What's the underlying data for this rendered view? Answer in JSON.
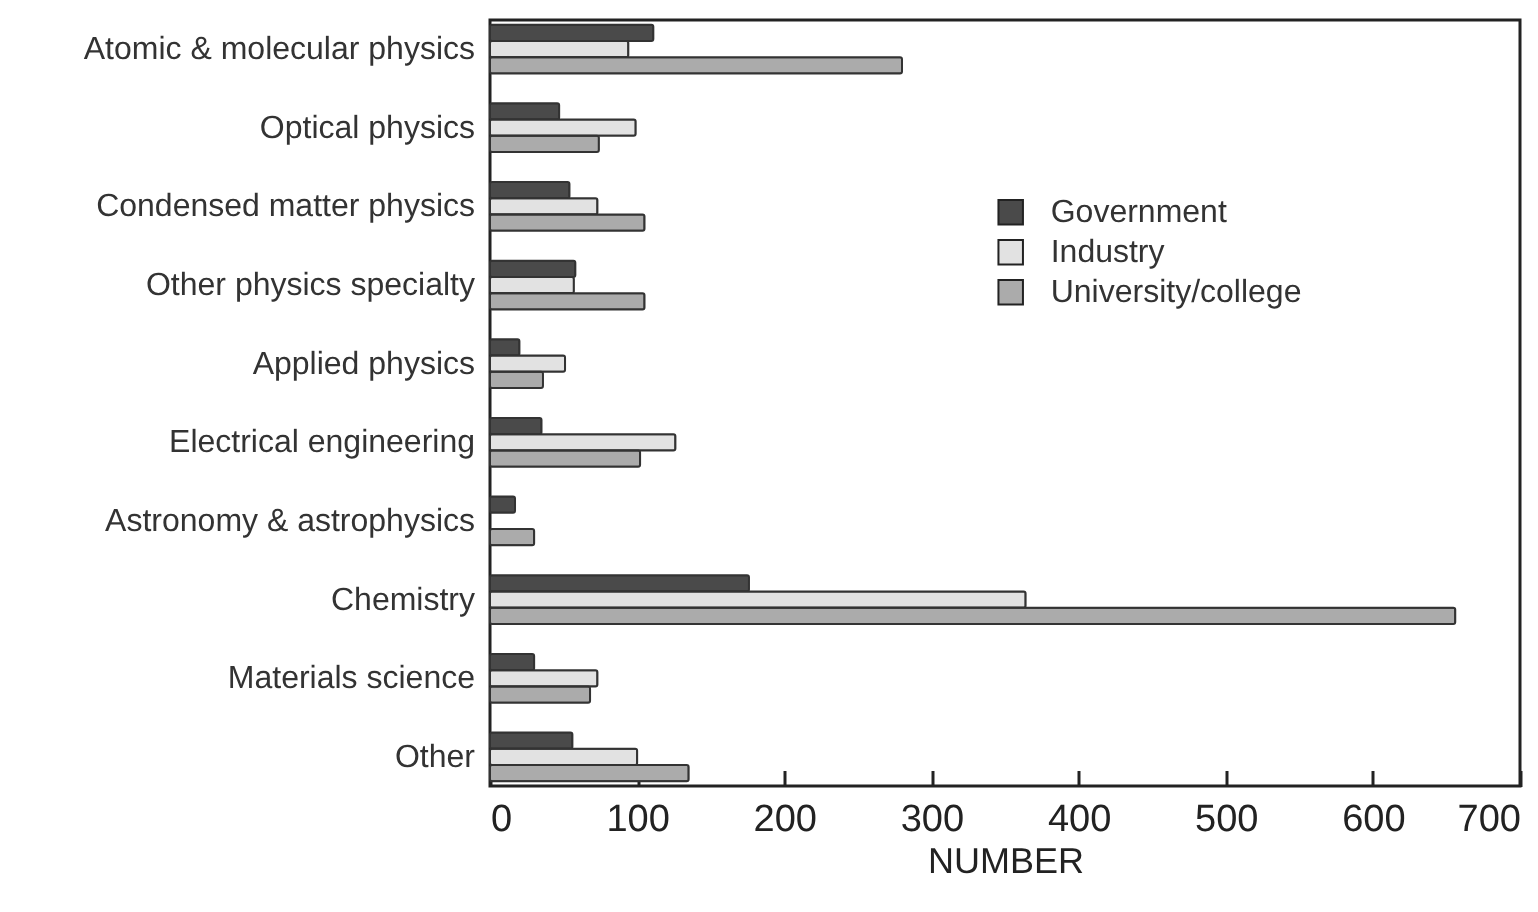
{
  "chart_data": {
    "type": "bar",
    "orientation": "horizontal",
    "xlabel": "NUMBER",
    "categories": [
      "Atomic & molecular physics",
      "Optical physics",
      "Condensed matter physics",
      "Other physics specialty",
      "Applied physics",
      "Electrical engineering",
      "Astronomy & astrophysics",
      "Chemistry",
      "Materials science",
      "Other"
    ],
    "series": [
      {
        "name": "Government",
        "color": "#4a4a4a",
        "values": [
          111,
          47,
          54,
          58,
          20,
          35,
          17,
          176,
          30,
          56
        ]
      },
      {
        "name": "Industry",
        "color": "#e2e2e2",
        "values": [
          94,
          99,
          73,
          57,
          51,
          126,
          null,
          364,
          73,
          100
        ]
      },
      {
        "name": "University/college",
        "color": "#ababab",
        "values": [
          280,
          74,
          105,
          105,
          36,
          102,
          30,
          656,
          68,
          135
        ]
      }
    ],
    "xlim": [
      0,
      700
    ],
    "xticks": [
      0,
      100,
      200,
      300,
      400,
      500,
      600,
      700
    ],
    "grid": false,
    "legend": "top right"
  }
}
